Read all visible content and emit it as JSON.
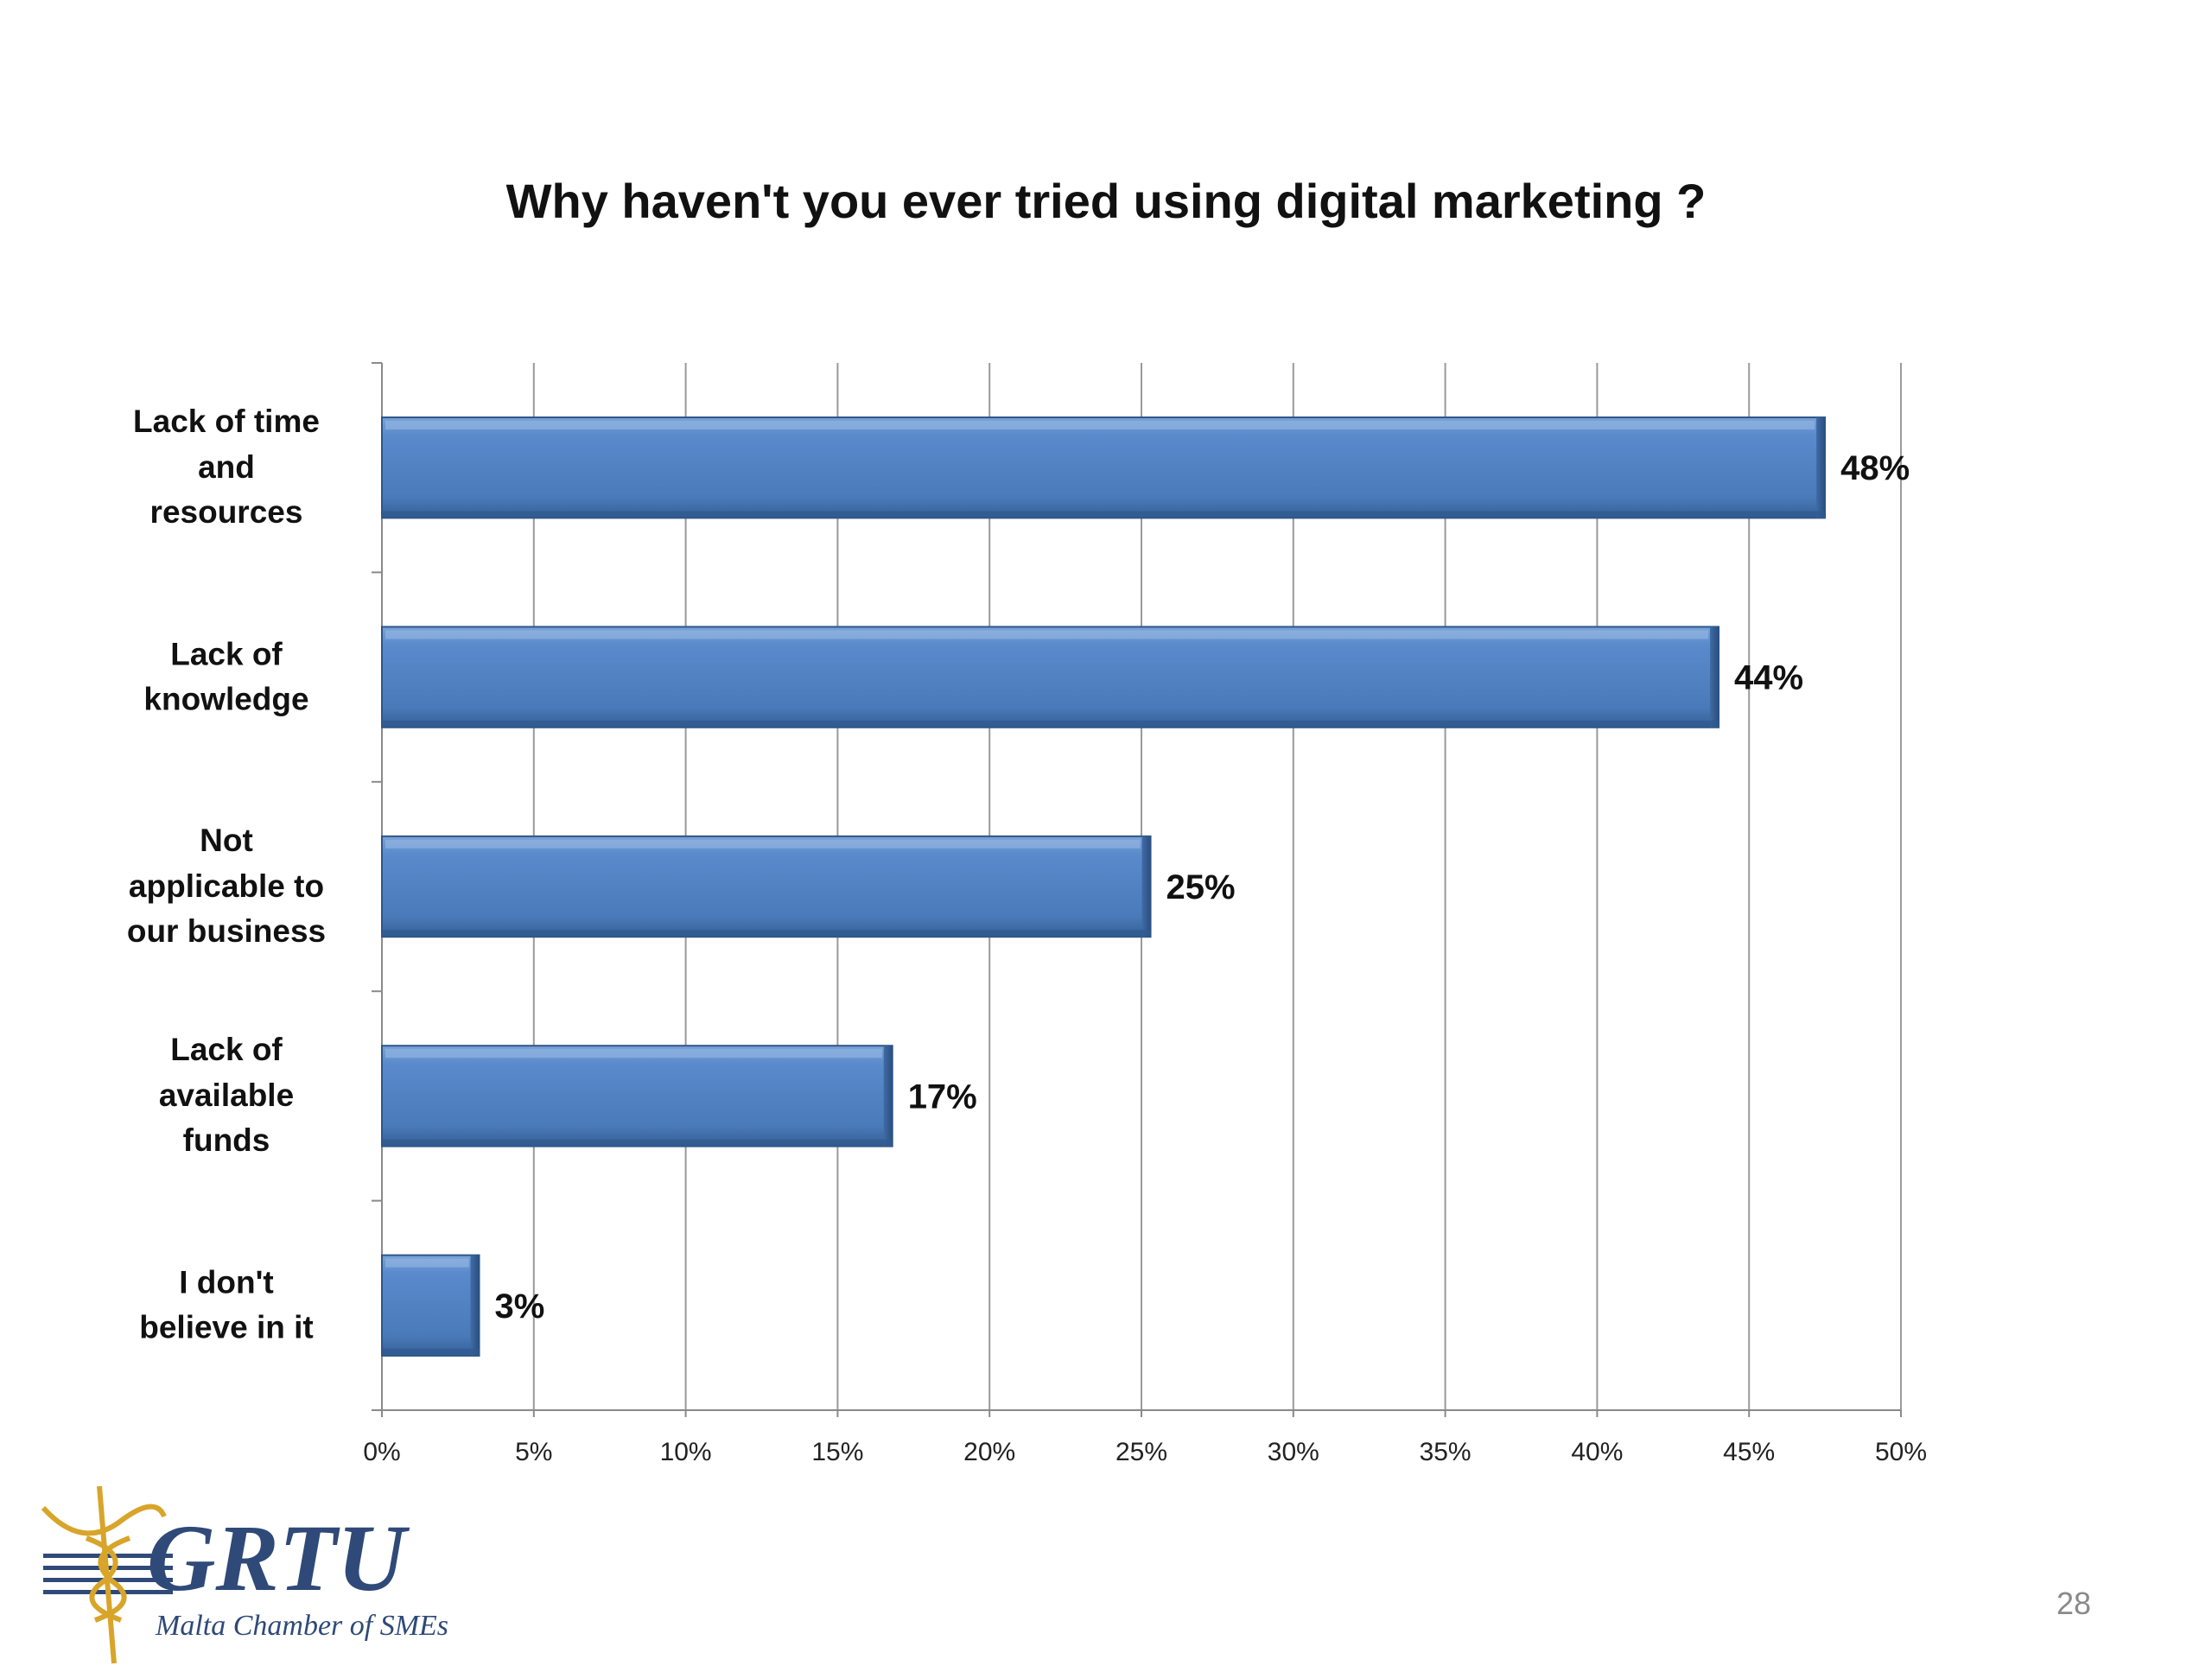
{
  "slide": {
    "page_number": "28"
  },
  "logo": {
    "name": "GRTU",
    "subtitle": "Malta Chamber of SMEs",
    "color": "#2f4a78",
    "accent": "#d8a52a"
  },
  "chart_data": {
    "type": "bar",
    "orientation": "horizontal",
    "title": "Why haven't you ever tried using digital marketing ?",
    "categories": [
      [
        "Lack of time",
        "and",
        "resources"
      ],
      [
        "Lack of",
        "knowledge"
      ],
      [
        "Not",
        "applicable to",
        "our business"
      ],
      [
        "Lack of",
        "available",
        "funds"
      ],
      [
        "I don't",
        "believe in it"
      ]
    ],
    "values": [
      47.5,
      44,
      25.3,
      16.8,
      3.2
    ],
    "data_labels": [
      "48%",
      "44%",
      "25%",
      "17%",
      "3%"
    ],
    "xlim": [
      0,
      50
    ],
    "xticks": [
      "0%",
      "5%",
      "10%",
      "15%",
      "20%",
      "25%",
      "30%",
      "35%",
      "40%",
      "45%",
      "50%"
    ],
    "grid": "vertical",
    "legend": "none",
    "bar_color": "#4f81bd",
    "bar_edge_color": "#2e5687",
    "xlabel": "",
    "ylabel": ""
  }
}
